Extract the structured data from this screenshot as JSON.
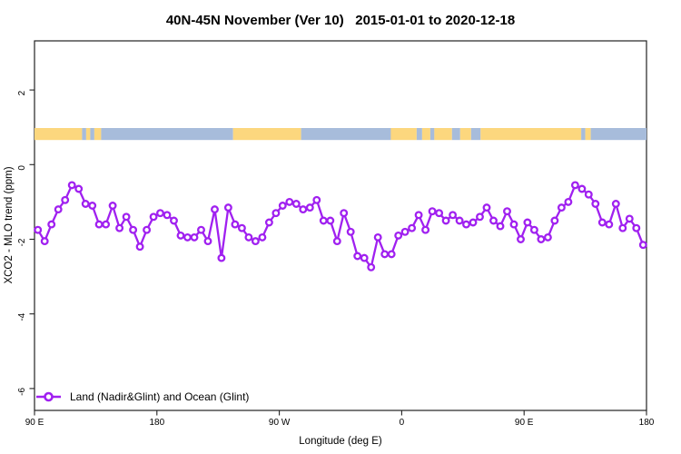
{
  "chart_data": {
    "type": "line",
    "title": "40N-45N November (Ver 10)   2015-01-01 to 2020-12-18",
    "xlabel": "Longitude (deg E)",
    "ylabel": "XCO2 - MLO trend (ppm)",
    "grid": false,
    "x_axis": {
      "range_deg": [
        90,
        540
      ],
      "tick_positions_deg": [
        90,
        180,
        270,
        360,
        450,
        540
      ],
      "tick_labels": [
        "90 E",
        "180",
        "90 W",
        "0",
        "90 E",
        "180"
      ],
      "note": "longitude runs eastward from 90E, wrapping past 180 through 90W and 0 back to 180"
    },
    "y_axis": {
      "range": [
        -6.6,
        3.3
      ],
      "tick_values": [
        2,
        0,
        -2,
        -4,
        -6
      ],
      "tick_labels": [
        "2",
        "0",
        "-2",
        "-4",
        "-6"
      ],
      "labels_rotated": true
    },
    "legend": {
      "position": "bottom-left-inside",
      "entries": [
        {
          "label": "Land (Nadir&Glint) and Ocean (Glint)",
          "color": "#A020F0",
          "marker": "open-circle-on-line"
        }
      ]
    },
    "series": [
      {
        "name": "Land (Nadir&Glint) and Ocean (Glint)",
        "color": "#A020F0",
        "marker": "open-circle",
        "lon_start_deg": 92.5,
        "lon_step_deg": 5,
        "values_ppm": [
          -1.75,
          -2.05,
          -1.6,
          -1.2,
          -0.95,
          -0.55,
          -0.65,
          -1.05,
          -1.1,
          -1.6,
          -1.6,
          -1.1,
          -1.7,
          -1.4,
          -1.75,
          -2.2,
          -1.75,
          -1.4,
          -1.3,
          -1.35,
          -1.5,
          -1.9,
          -1.95,
          -1.95,
          -1.75,
          -2.05,
          -1.2,
          -2.5,
          -1.15,
          -1.6,
          -1.7,
          -1.95,
          -2.05,
          -1.95,
          -1.55,
          -1.3,
          -1.1,
          -1.0,
          -1.05,
          -1.2,
          -1.15,
          -0.95,
          -1.5,
          -1.5,
          -2.05,
          -1.3,
          -1.8,
          -2.45,
          -2.5,
          -2.75,
          -1.95,
          -2.4,
          -2.4,
          -1.9,
          -1.8,
          -1.7,
          -1.35,
          -1.75,
          -1.25,
          -1.3,
          -1.5,
          -1.35,
          -1.5,
          -1.6,
          -1.55,
          -1.4,
          -1.15,
          -1.5,
          -1.65,
          -1.25,
          -1.6,
          -2.0,
          -1.55,
          -1.75,
          -2.0,
          -1.95,
          -1.5,
          -1.15,
          -1.0,
          -0.55,
          -0.65,
          -0.8,
          -1.05,
          -1.55,
          -1.6,
          -1.05,
          -1.7,
          -1.45,
          -1.7,
          -2.15
        ]
      }
    ],
    "map_strip": {
      "description": "land/ocean strip along the 40N-45N latitude band",
      "ppm_band": [
        0.66,
        0.98
      ],
      "land_color": "#FCD77E",
      "ocean_color": "#A7BCDB",
      "segments": [
        {
          "type": "land",
          "from_deg": 90,
          "to_deg": 125
        },
        {
          "type": "ocean",
          "from_deg": 125,
          "to_deg": 128
        },
        {
          "type": "land",
          "from_deg": 128,
          "to_deg": 131
        },
        {
          "type": "ocean",
          "from_deg": 131,
          "to_deg": 134
        },
        {
          "type": "land",
          "from_deg": 134,
          "to_deg": 139
        },
        {
          "type": "ocean",
          "from_deg": 139,
          "to_deg": 236
        },
        {
          "type": "land",
          "from_deg": 236,
          "to_deg": 286
        },
        {
          "type": "ocean",
          "from_deg": 286,
          "to_deg": 352
        },
        {
          "type": "land",
          "from_deg": 352,
          "to_deg": 371
        },
        {
          "type": "ocean",
          "from_deg": 371,
          "to_deg": 375
        },
        {
          "type": "land",
          "from_deg": 375,
          "to_deg": 381
        },
        {
          "type": "ocean",
          "from_deg": 381,
          "to_deg": 384
        },
        {
          "type": "land",
          "from_deg": 384,
          "to_deg": 397
        },
        {
          "type": "ocean",
          "from_deg": 397,
          "to_deg": 403
        },
        {
          "type": "land",
          "from_deg": 403,
          "to_deg": 411
        },
        {
          "type": "ocean",
          "from_deg": 411,
          "to_deg": 418
        },
        {
          "type": "land",
          "from_deg": 418,
          "to_deg": 492
        },
        {
          "type": "ocean",
          "from_deg": 492,
          "to_deg": 495
        },
        {
          "type": "land",
          "from_deg": 495,
          "to_deg": 499
        },
        {
          "type": "ocean",
          "from_deg": 499,
          "to_deg": 540
        }
      ]
    }
  },
  "colors": {
    "background": "#FFFFFF",
    "axis": "#222222",
    "series_purple": "#A020F0",
    "land_yellow": "#FCD77E",
    "ocean_blue": "#A7BCDB"
  }
}
